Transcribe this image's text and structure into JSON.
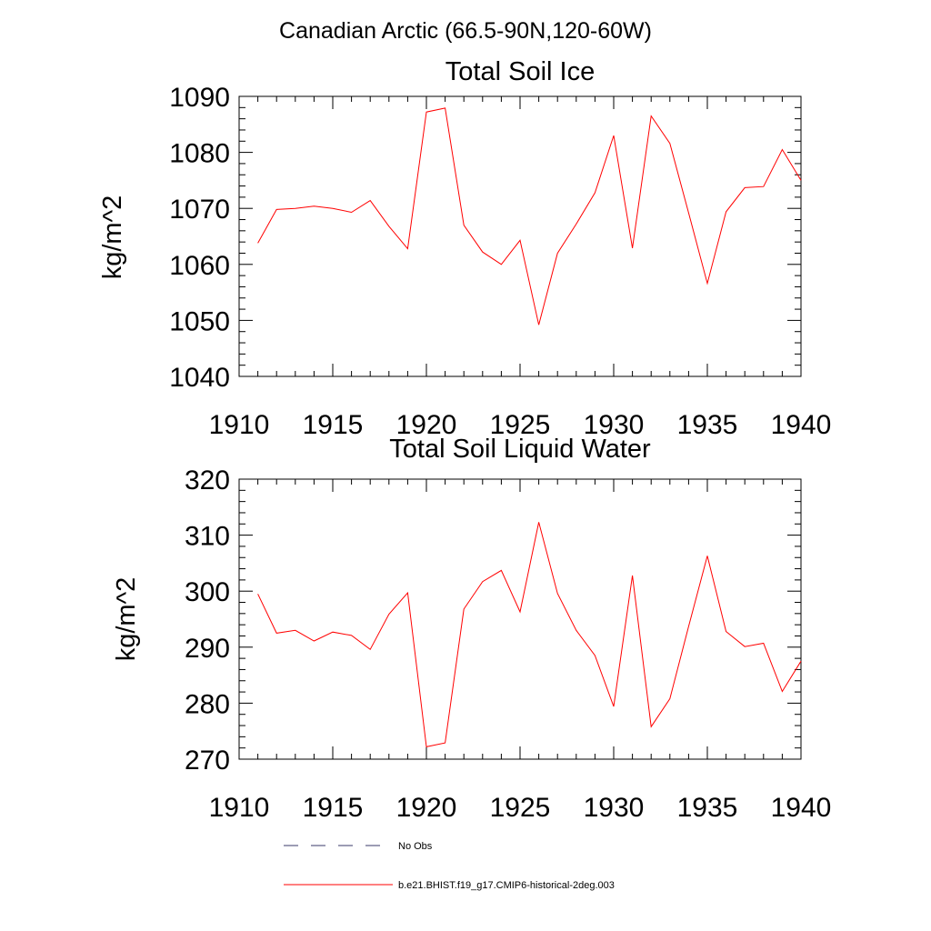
{
  "figure": {
    "title": "Canadian Arctic (66.5-90N,120-60W)"
  },
  "legend": [
    {
      "label": "No Obs",
      "style": "dashed",
      "color": "#3a3a6a"
    },
    {
      "label": "b.e21.BHIST.f19_g17.CMIP6-historical-2deg.003",
      "style": "solid",
      "color": "#ff0000"
    }
  ],
  "chart_data": [
    {
      "type": "line",
      "title": "Total Soil Ice",
      "ylabel": "kg/m^2",
      "xlabel": "",
      "xlim": [
        1910,
        1940
      ],
      "ylim": [
        1040,
        1090
      ],
      "x_ticks": [
        1910,
        1915,
        1920,
        1925,
        1930,
        1935,
        1940
      ],
      "y_ticks": [
        1040,
        1050,
        1060,
        1070,
        1080,
        1090
      ],
      "grid": false,
      "series": [
        {
          "name": "b.e21.BHIST.f19_g17.CMIP6-historical-2deg.003",
          "color": "#ff0000",
          "x": [
            1911,
            1912,
            1913,
            1914,
            1915,
            1916,
            1917,
            1918,
            1919,
            1920,
            1921,
            1922,
            1923,
            1924,
            1925,
            1926,
            1927,
            1928,
            1929,
            1930,
            1931,
            1932,
            1933,
            1934,
            1935,
            1936,
            1937,
            1938,
            1939,
            1940
          ],
          "y": [
            1063.8,
            1069.8,
            1070.0,
            1070.4,
            1070.0,
            1069.3,
            1071.4,
            1066.8,
            1062.8,
            1087.2,
            1087.9,
            1067.0,
            1062.2,
            1060.0,
            1064.3,
            1049.2,
            1062.0,
            1067.2,
            1072.8,
            1083.0,
            1062.9,
            1086.5,
            1081.6,
            1069.2,
            1056.6,
            1069.4,
            1073.7,
            1073.9,
            1080.5,
            1075.0
          ]
        }
      ]
    },
    {
      "type": "line",
      "title": "Total Soil Liquid Water",
      "ylabel": "kg/m^2",
      "xlabel": "",
      "xlim": [
        1910,
        1940
      ],
      "ylim": [
        270,
        320
      ],
      "x_ticks": [
        1910,
        1915,
        1920,
        1925,
        1930,
        1935,
        1940
      ],
      "y_ticks": [
        270,
        280,
        290,
        300,
        310,
        320
      ],
      "grid": false,
      "series": [
        {
          "name": "b.e21.BHIST.f19_g17.CMIP6-historical-2deg.003",
          "color": "#ff0000",
          "x": [
            1911,
            1912,
            1913,
            1914,
            1915,
            1916,
            1917,
            1918,
            1919,
            1920,
            1921,
            1922,
            1923,
            1924,
            1925,
            1926,
            1927,
            1928,
            1929,
            1930,
            1931,
            1932,
            1933,
            1934,
            1935,
            1936,
            1937,
            1938,
            1939,
            1940
          ],
          "y": [
            299.5,
            292.5,
            293.0,
            291.1,
            292.7,
            292.1,
            289.6,
            295.9,
            299.7,
            272.2,
            272.9,
            296.8,
            301.7,
            303.7,
            296.3,
            312.3,
            299.6,
            293.0,
            288.5,
            279.4,
            302.8,
            275.8,
            280.8,
            293.7,
            306.3,
            292.8,
            290.1,
            290.7,
            282.1,
            287.5
          ]
        }
      ]
    }
  ]
}
